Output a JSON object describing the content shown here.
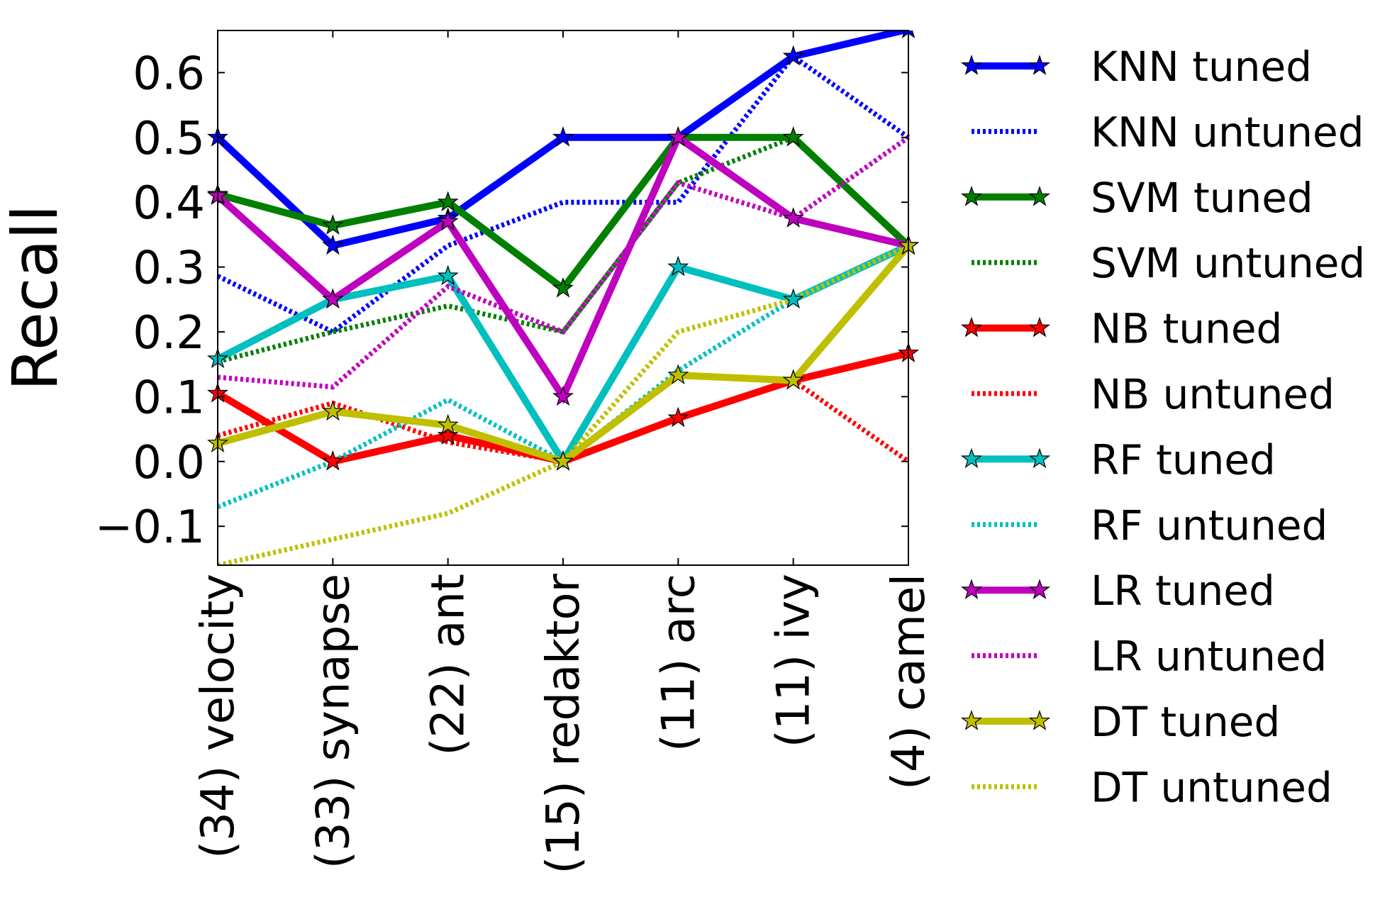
{
  "chart_data": {
    "type": "line",
    "title": "",
    "xlabel": "",
    "ylabel": "Recall",
    "ylim": [
      -0.16,
      0.665
    ],
    "yticks": [
      -0.1,
      0.0,
      0.1,
      0.2,
      0.3,
      0.4,
      0.5,
      0.6
    ],
    "ytick_labels": [
      "−0.1",
      "0.0",
      "0.1",
      "0.2",
      "0.3",
      "0.4",
      "0.5",
      "0.6"
    ],
    "categories": [
      "(34) velocity",
      "(33) synapse",
      "(22) ant",
      "(15) redaktor",
      "(11) arc",
      "(11) ivy",
      "(4) camel"
    ],
    "legend_position": "right-outside",
    "series": [
      {
        "name": "KNN tuned",
        "color": "#0000ff",
        "style": "solid",
        "marker": "star",
        "values": [
          0.5,
          0.333,
          0.375,
          0.5,
          0.5,
          0.625,
          0.667
        ]
      },
      {
        "name": "KNN untuned",
        "color": "#0000ff",
        "style": "dotted",
        "marker": "none",
        "values": [
          0.286,
          0.2,
          0.333,
          0.4,
          0.4,
          0.625,
          0.5
        ]
      },
      {
        "name": "SVM tuned",
        "color": "#007f00",
        "style": "solid",
        "marker": "star",
        "values": [
          0.412,
          0.364,
          0.4,
          0.267,
          0.5,
          0.5,
          0.333
        ]
      },
      {
        "name": "SVM untuned",
        "color": "#007f00",
        "style": "dotted",
        "marker": "none",
        "values": [
          0.154,
          0.2,
          0.24,
          0.2,
          0.43,
          0.5,
          0.333
        ]
      },
      {
        "name": "NB tuned",
        "color": "#ff0000",
        "style": "solid",
        "marker": "star",
        "values": [
          0.105,
          0.0,
          0.04,
          0.0,
          0.067,
          0.125,
          0.167
        ]
      },
      {
        "name": "NB untuned",
        "color": "#ff0000",
        "style": "dotted",
        "marker": "none",
        "values": [
          0.04,
          0.09,
          0.03,
          0.0,
          0.065,
          0.125,
          0.0
        ]
      },
      {
        "name": "RF tuned",
        "color": "#00bfbf",
        "style": "solid",
        "marker": "star",
        "values": [
          0.158,
          0.25,
          0.286,
          0.0,
          0.3,
          0.25,
          0.333
        ]
      },
      {
        "name": "RF untuned",
        "color": "#00bfbf",
        "style": "dotted",
        "marker": "none",
        "values": [
          -0.07,
          0.0,
          0.095,
          0.0,
          0.14,
          0.25,
          0.333
        ]
      },
      {
        "name": "LR tuned",
        "color": "#bf00bf",
        "style": "solid",
        "marker": "star",
        "values": [
          0.41,
          0.25,
          0.37,
          0.1,
          0.5,
          0.375,
          0.333
        ]
      },
      {
        "name": "LR untuned",
        "color": "#bf00bf",
        "style": "dotted",
        "marker": "none",
        "values": [
          0.13,
          0.115,
          0.27,
          0.2,
          0.43,
          0.375,
          0.5
        ]
      },
      {
        "name": "DT tuned",
        "color": "#bfbf00",
        "style": "solid",
        "marker": "star",
        "values": [
          0.028,
          0.077,
          0.056,
          0.0,
          0.133,
          0.125,
          0.333
        ]
      },
      {
        "name": "DT untuned",
        "color": "#bfbf00",
        "style": "dotted",
        "marker": "none",
        "values": [
          -0.16,
          -0.12,
          -0.08,
          0.0,
          0.2,
          0.25,
          0.333
        ]
      }
    ]
  }
}
